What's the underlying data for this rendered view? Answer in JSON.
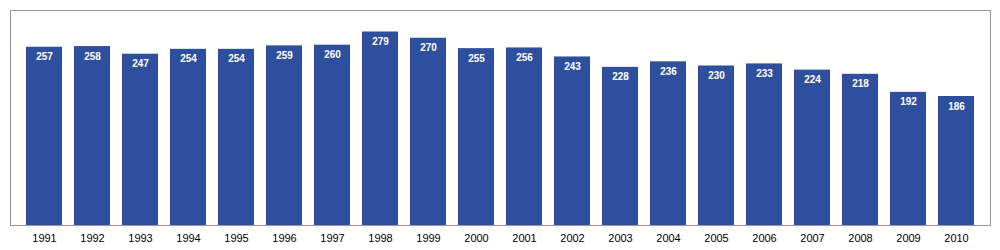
{
  "chart_data": {
    "type": "bar",
    "categories": [
      "1991",
      "1992",
      "1993",
      "1994",
      "1995",
      "1996",
      "1997",
      "1998",
      "1999",
      "2000",
      "2001",
      "2002",
      "2003",
      "2004",
      "2005",
      "2006",
      "2007",
      "2008",
      "2009",
      "2010"
    ],
    "values": [
      257,
      258,
      247,
      254,
      254,
      259,
      260,
      279,
      270,
      255,
      256,
      243,
      228,
      236,
      230,
      233,
      224,
      218,
      192,
      186
    ],
    "color": "#2e4e9e",
    "ylim": [
      0,
      310
    ],
    "grid": false,
    "data_labels": true,
    "tick_labels": "x"
  }
}
